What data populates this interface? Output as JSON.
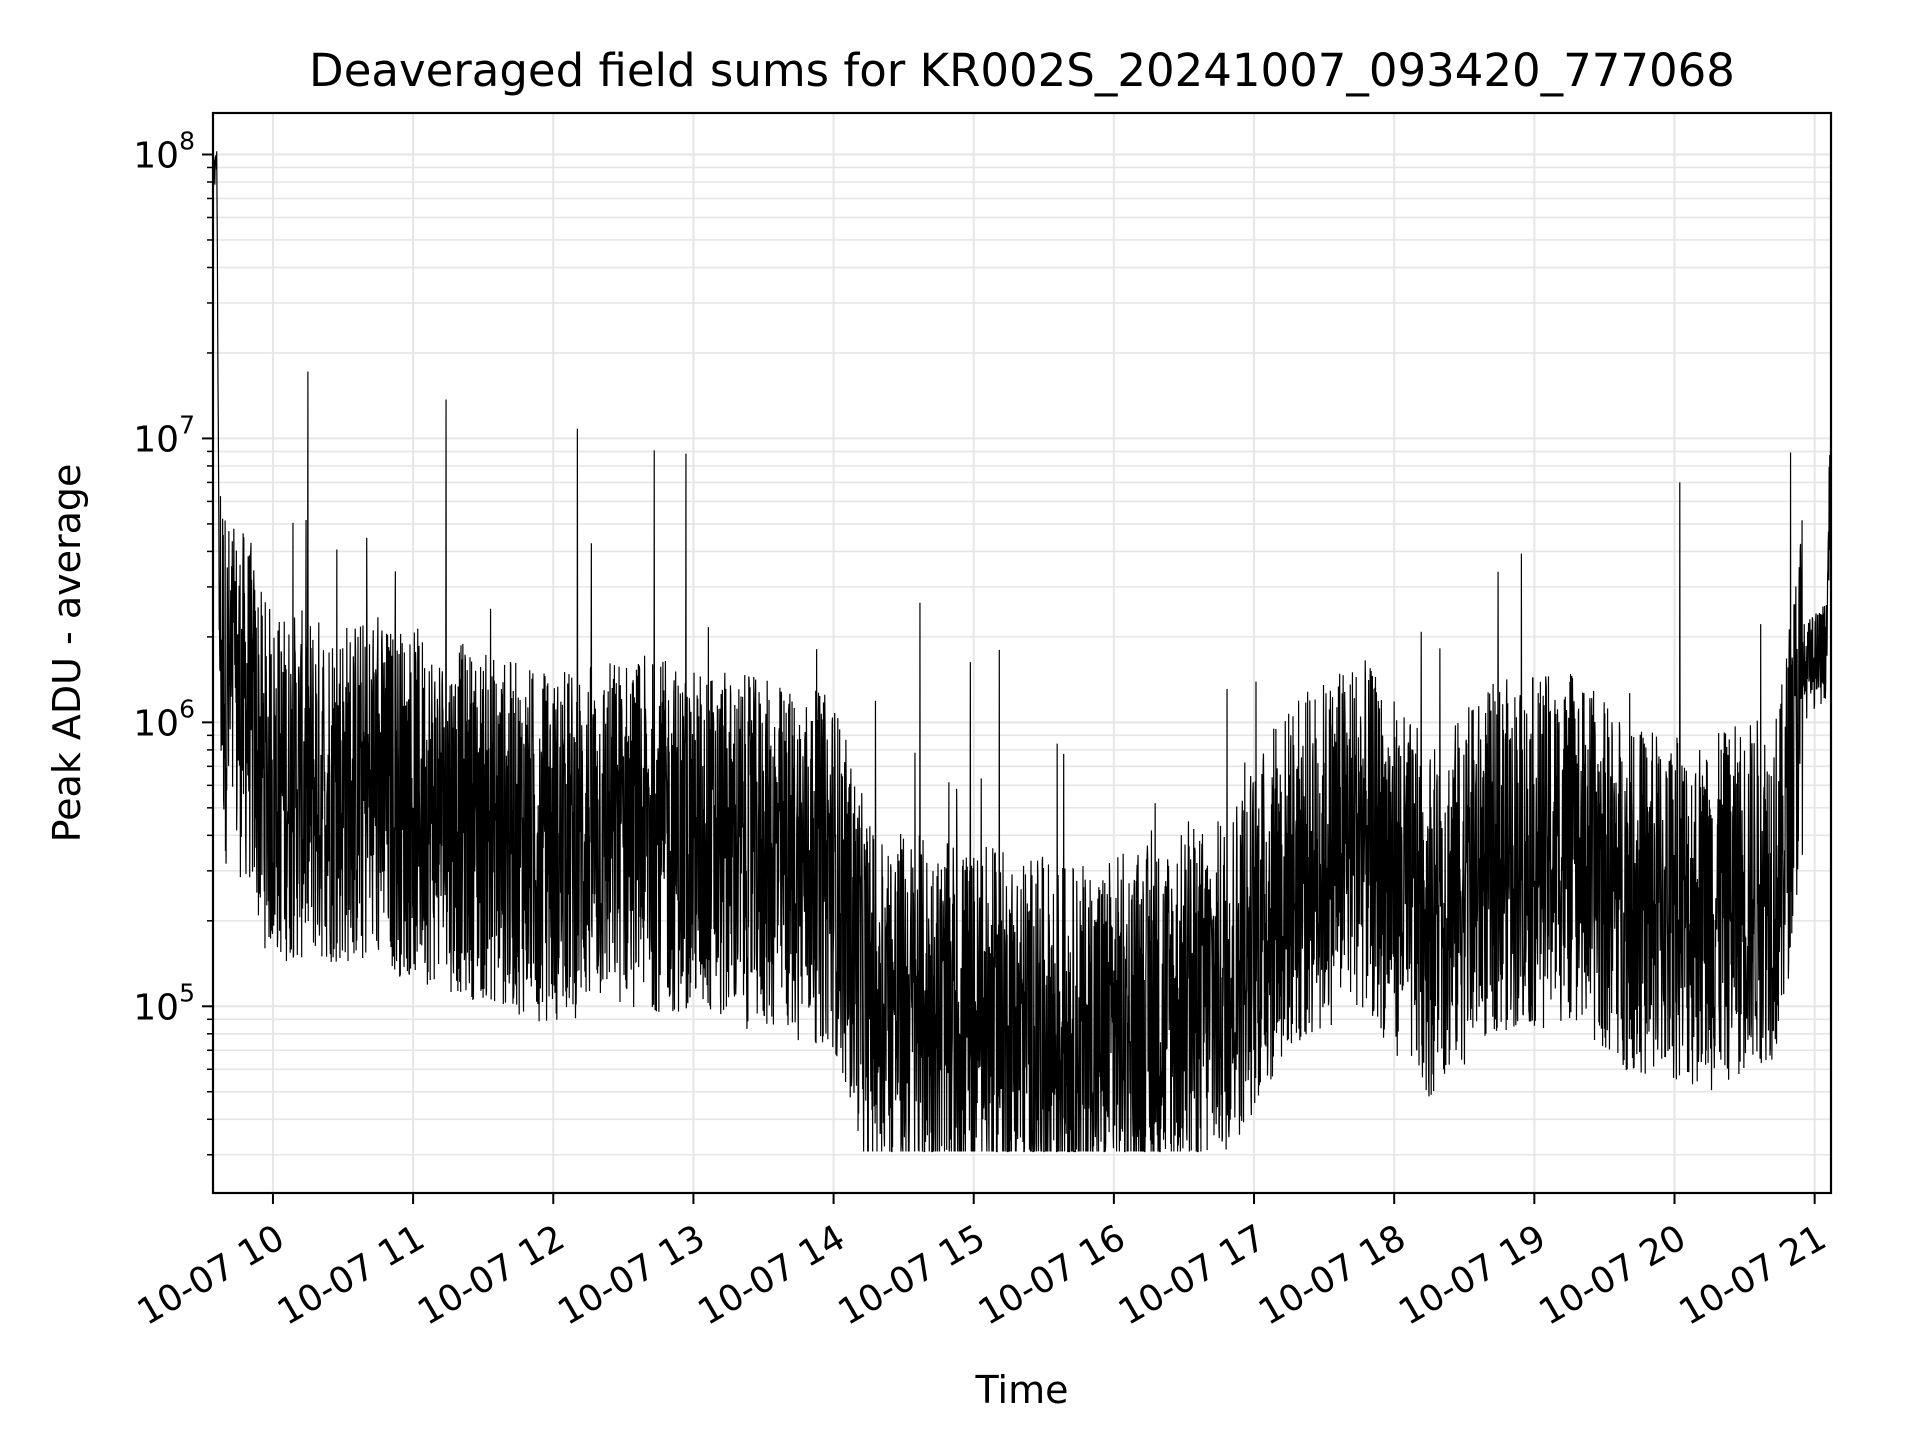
{
  "chart_data": {
    "type": "line",
    "title": "Deaveraged field sums for KR002S_20241007_093420_777068",
    "xlabel": "Time",
    "ylabel": "Peak ADU - average",
    "x_axis_type": "datetime",
    "x_range": [
      "2024-10-07T09:34:20",
      "2024-10-07T21:07:00"
    ],
    "y_scale": "log",
    "ylim": [
      22000,
      140000000
    ],
    "x_ticks": [
      {
        "value": "2024-10-07T10:00:00",
        "label": "10-07 10"
      },
      {
        "value": "2024-10-07T11:00:00",
        "label": "10-07 11"
      },
      {
        "value": "2024-10-07T12:00:00",
        "label": "10-07 12"
      },
      {
        "value": "2024-10-07T13:00:00",
        "label": "10-07 13"
      },
      {
        "value": "2024-10-07T14:00:00",
        "label": "10-07 14"
      },
      {
        "value": "2024-10-07T15:00:00",
        "label": "10-07 15"
      },
      {
        "value": "2024-10-07T16:00:00",
        "label": "10-07 16"
      },
      {
        "value": "2024-10-07T17:00:00",
        "label": "10-07 17"
      },
      {
        "value": "2024-10-07T18:00:00",
        "label": "10-07 18"
      },
      {
        "value": "2024-10-07T19:00:00",
        "label": "10-07 19"
      },
      {
        "value": "2024-10-07T20:00:00",
        "label": "10-07 20"
      },
      {
        "value": "2024-10-07T21:00:00",
        "label": "10-07 21"
      }
    ],
    "y_ticks": [
      {
        "value": 100000,
        "base": "10",
        "exp": "5"
      },
      {
        "value": 1000000,
        "base": "10",
        "exp": "6"
      },
      {
        "value": 10000000,
        "base": "10",
        "exp": "7"
      },
      {
        "value": 100000000,
        "base": "10",
        "exp": "8"
      }
    ],
    "grid": true,
    "line_color": "#000000",
    "grid_color": "#e6e6e6",
    "series_points": [
      [
        "2024-10-07T09:34:20",
        80000000
      ],
      [
        "2024-10-07T09:36:00",
        95000000
      ],
      [
        "2024-10-07T09:37:00",
        2400000
      ],
      [
        "2024-10-07T09:40:00",
        1300000
      ],
      [
        "2024-10-07T09:50:00",
        1100000
      ],
      [
        "2024-10-07T09:55:00",
        700000
      ],
      [
        "2024-10-07T10:00:00",
        600000
      ],
      [
        "2024-10-07T10:30:00",
        580000
      ],
      [
        "2024-10-07T11:00:00",
        520000
      ],
      [
        "2024-10-07T11:30:00",
        430000
      ],
      [
        "2024-10-07T12:00:00",
        360000
      ],
      [
        "2024-10-07T12:30:00",
        420000
      ],
      [
        "2024-10-07T13:00:00",
        380000
      ],
      [
        "2024-10-07T13:30:00",
        340000
      ],
      [
        "2024-10-07T14:00:00",
        300000
      ],
      [
        "2024-10-07T14:15:00",
        110000
      ],
      [
        "2024-10-07T14:45:00",
        90000
      ],
      [
        "2024-10-07T15:15:00",
        85000
      ],
      [
        "2024-10-07T15:45:00",
        75000
      ],
      [
        "2024-10-07T16:15:00",
        90000
      ],
      [
        "2024-10-07T16:45:00",
        110000
      ],
      [
        "2024-10-07T17:15:00",
        280000
      ],
      [
        "2024-10-07T17:45:00",
        420000
      ],
      [
        "2024-10-07T18:15:00",
        200000
      ],
      [
        "2024-10-07T18:45:00",
        340000
      ],
      [
        "2024-10-07T19:15:00",
        360000
      ],
      [
        "2024-10-07T19:45:00",
        230000
      ],
      [
        "2024-10-07T20:15:00",
        210000
      ],
      [
        "2024-10-07T20:45:00",
        280000
      ],
      [
        "2024-10-07T20:55:00",
        1500000
      ],
      [
        "2024-10-07T21:05:00",
        1800000
      ],
      [
        "2024-10-07T21:07:00",
        11000000
      ]
    ]
  }
}
